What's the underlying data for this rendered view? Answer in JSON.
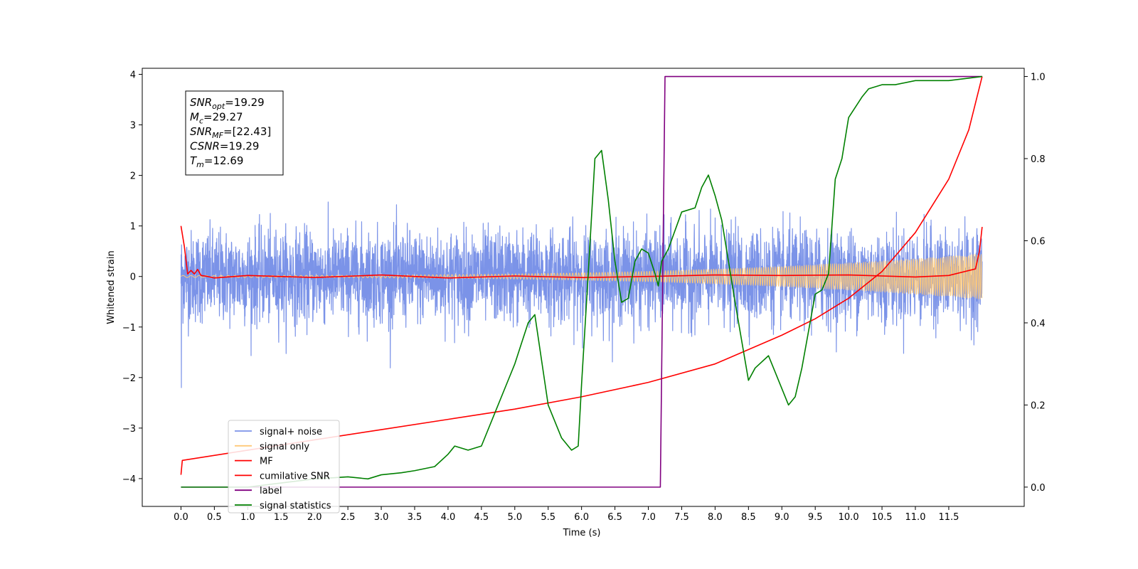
{
  "chart_data": {
    "type": "line",
    "xlabel": "Time (s)",
    "ylabel": "Whitened strain",
    "xlim": [
      -0.58,
      12.63
    ],
    "ylim": [
      -4.55,
      4.12
    ],
    "y2lim": [
      -0.047,
      1.02
    ],
    "xticks": [
      0.0,
      0.5,
      1.0,
      1.5,
      2.0,
      2.5,
      3.0,
      3.5,
      4.0,
      4.5,
      5.0,
      5.5,
      6.0,
      6.5,
      7.0,
      7.5,
      8.0,
      8.5,
      9.0,
      9.5,
      10.0,
      10.5,
      11.0,
      11.5
    ],
    "xtick_labels": [
      "0.0",
      "0.5",
      "1.0",
      "1.5",
      "2.0",
      "2.5",
      "3.0",
      "3.5",
      "4.0",
      "4.5",
      "5.0",
      "5.5",
      "6.0",
      "6.5",
      "7.0",
      "7.5",
      "8.0",
      "8.5",
      "9.0",
      "9.5",
      "10.0",
      "10.5",
      "11.0",
      "11.5"
    ],
    "yticks": [
      -4,
      -3,
      -2,
      -1,
      0,
      1,
      2,
      3,
      4
    ],
    "ytick_labels": [
      "−4",
      "−3",
      "−2",
      "−1",
      "0",
      "1",
      "2",
      "3",
      "4"
    ],
    "y2ticks": [
      0.0,
      0.2,
      0.4,
      0.6,
      0.8,
      1.0
    ],
    "y2tick_labels": [
      "0.0",
      "0.2",
      "0.4",
      "0.6",
      "0.8",
      "1.0"
    ],
    "grid": false,
    "legend_position": "lower-left",
    "legend": [
      {
        "label": "signal+ noise",
        "color": "#7b93e8"
      },
      {
        "label": "signal only",
        "color": "#ffc978"
      },
      {
        "label": "MF",
        "color": "#ff0000"
      },
      {
        "label": "cumilative SNR",
        "color": "#ff0000"
      },
      {
        "label": "label",
        "color": "#800080"
      },
      {
        "label": "signal statistics",
        "color": "#008000"
      }
    ],
    "stats_box": [
      {
        "sym": "SNR",
        "sub": "opt",
        "text": "=19.29"
      },
      {
        "sym": "M",
        "sub": "c",
        "text": "=29.27"
      },
      {
        "sym": "SNR",
        "sub": "MF",
        "text": "=[22.43]"
      },
      {
        "sym": "CSNR",
        "sub": "",
        "text": "=19.29"
      },
      {
        "sym": "T",
        "sub": "m",
        "text": "=12.69"
      }
    ],
    "series": [
      {
        "name": "signal+ noise",
        "axis": "left",
        "color": "#7b93e8",
        "kind": "noise",
        "t_range": [
          0.0,
          12.0
        ],
        "std": 0.45,
        "max_abs": 1.85
      },
      {
        "name": "signal only",
        "axis": "left",
        "color": "#ffc978",
        "kind": "chirp",
        "t_range": [
          0.0,
          12.0
        ],
        "amplitude_start": 0.02,
        "amplitude_end": 0.45
      },
      {
        "name": "MF",
        "axis": "left",
        "color": "#ff0000",
        "x": [
          0.0,
          0.05,
          0.1,
          0.15,
          0.2,
          0.25,
          0.3,
          0.4,
          0.5,
          1.0,
          2.0,
          3.0,
          4.0,
          5.0,
          6.0,
          7.0,
          8.0,
          9.0,
          10.0,
          11.0,
          11.5,
          11.9,
          11.96,
          12.0
        ],
        "y": [
          1.0,
          0.6,
          0.05,
          0.12,
          0.05,
          0.14,
          0.02,
          0.0,
          -0.03,
          0.02,
          -0.02,
          0.03,
          -0.03,
          0.01,
          -0.02,
          0.0,
          0.03,
          0.02,
          0.03,
          -0.01,
          0.02,
          0.15,
          0.5,
          0.98
        ]
      },
      {
        "name": "cumilative SNR",
        "axis": "right",
        "color": "#ff0000",
        "x": [
          0.0,
          0.02,
          1.0,
          2.0,
          3.0,
          4.0,
          5.0,
          6.0,
          7.0,
          8.0,
          9.0,
          9.5,
          10.0,
          10.5,
          11.0,
          11.5,
          11.8,
          12.0
        ],
        "y": [
          0.03,
          0.065,
          0.09,
          0.115,
          0.14,
          0.165,
          0.19,
          0.22,
          0.255,
          0.3,
          0.37,
          0.41,
          0.46,
          0.525,
          0.62,
          0.75,
          0.87,
          1.0
        ]
      },
      {
        "name": "label",
        "axis": "right",
        "color": "#800080",
        "x": [
          0.0,
          7.18,
          7.25,
          12.0
        ],
        "y": [
          0.0,
          0.0,
          1.0,
          1.0
        ]
      },
      {
        "name": "signal statistics",
        "axis": "right",
        "color": "#008000",
        "x": [
          0.0,
          0.5,
          1.0,
          1.5,
          2.0,
          2.5,
          2.8,
          3.0,
          3.3,
          3.5,
          3.8,
          4.0,
          4.1,
          4.3,
          4.5,
          4.7,
          4.9,
          5.0,
          5.1,
          5.2,
          5.3,
          5.5,
          5.7,
          5.85,
          5.95,
          6.0,
          6.1,
          6.2,
          6.3,
          6.4,
          6.5,
          6.6,
          6.7,
          6.8,
          6.9,
          7.0,
          7.1,
          7.15,
          7.2,
          7.3,
          7.5,
          7.7,
          7.8,
          7.9,
          8.0,
          8.1,
          8.3,
          8.5,
          8.6,
          8.8,
          8.9,
          9.1,
          9.2,
          9.3,
          9.4,
          9.5,
          9.6,
          9.7,
          9.8,
          9.9,
          10.0,
          10.2,
          10.3,
          10.5,
          10.7,
          11.0,
          11.5,
          12.0
        ],
        "y": [
          0.0,
          0.0,
          0.0,
          0.01,
          0.02,
          0.025,
          0.02,
          0.03,
          0.035,
          0.04,
          0.05,
          0.08,
          0.1,
          0.09,
          0.1,
          0.18,
          0.26,
          0.3,
          0.35,
          0.4,
          0.42,
          0.2,
          0.12,
          0.09,
          0.1,
          0.25,
          0.52,
          0.8,
          0.82,
          0.7,
          0.55,
          0.45,
          0.46,
          0.55,
          0.58,
          0.57,
          0.52,
          0.49,
          0.55,
          0.58,
          0.67,
          0.68,
          0.73,
          0.76,
          0.71,
          0.65,
          0.45,
          0.26,
          0.29,
          0.32,
          0.28,
          0.2,
          0.22,
          0.29,
          0.38,
          0.47,
          0.48,
          0.52,
          0.75,
          0.8,
          0.9,
          0.95,
          0.97,
          0.98,
          0.98,
          0.99,
          0.99,
          1.0
        ]
      }
    ]
  }
}
